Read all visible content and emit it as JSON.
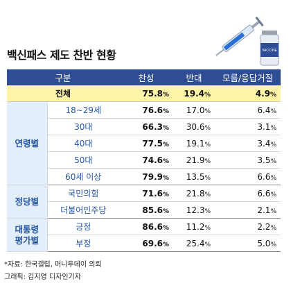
{
  "title": "백신패스 제도 찬반 현황",
  "table": {
    "headers": [
      "구분",
      "찬성",
      "반대",
      "모름/응답거절"
    ],
    "total": {
      "label": "전체",
      "values": [
        "75.8",
        "19.4",
        "4.9"
      ]
    },
    "groups": [
      {
        "name": "연령별",
        "rows": [
          {
            "label": "18~29세",
            "values": [
              "76.6",
              "17.0",
              "6.4"
            ]
          },
          {
            "label": "30대",
            "values": [
              "66.3",
              "30.6",
              "3.1"
            ]
          },
          {
            "label": "40대",
            "values": [
              "77.5",
              "19.1",
              "3.4"
            ]
          },
          {
            "label": "50대",
            "values": [
              "74.6",
              "21.9",
              "3.5"
            ]
          },
          {
            "label": "60세 이상",
            "values": [
              "79.9",
              "13.5",
              "6.6"
            ]
          }
        ]
      },
      {
        "name": "정당별",
        "rows": [
          {
            "label": "국민의힘",
            "values": [
              "71.6",
              "21.8",
              "6.6"
            ]
          },
          {
            "label": "더불어민주당",
            "values": [
              "85.6",
              "12.3",
              "2.1"
            ]
          }
        ]
      },
      {
        "name": "대통령\n평가별",
        "rows": [
          {
            "label": "긍정",
            "values": [
              "86.6",
              "11.2",
              "2.2"
            ]
          },
          {
            "label": "부정",
            "values": [
              "69.6",
              "25.4",
              "5.0"
            ]
          }
        ]
      }
    ]
  },
  "unit": "%",
  "source": "*자료: 한국갤럽, 머니투데이 의뢰",
  "credit": "그래픽: 김지영 디자인기자",
  "vial_label": "VACCINE",
  "chart_data": {
    "type": "table",
    "title": "백신패스 제도 찬반 현황",
    "columns": [
      "찬성",
      "반대",
      "모름/응답거절"
    ],
    "unit": "%",
    "rows": [
      {
        "group": "",
        "label": "전체",
        "values": [
          75.8,
          19.4,
          4.9
        ]
      },
      {
        "group": "연령별",
        "label": "18~29세",
        "values": [
          76.6,
          17.0,
          6.4
        ]
      },
      {
        "group": "연령별",
        "label": "30대",
        "values": [
          66.3,
          30.6,
          3.1
        ]
      },
      {
        "group": "연령별",
        "label": "40대",
        "values": [
          77.5,
          19.1,
          3.4
        ]
      },
      {
        "group": "연령별",
        "label": "50대",
        "values": [
          74.6,
          21.9,
          3.5
        ]
      },
      {
        "group": "연령별",
        "label": "60세 이상",
        "values": [
          79.9,
          13.5,
          6.6
        ]
      },
      {
        "group": "정당별",
        "label": "국민의힘",
        "values": [
          71.6,
          21.8,
          6.6
        ]
      },
      {
        "group": "정당별",
        "label": "더불어민주당",
        "values": [
          85.6,
          12.3,
          2.1
        ]
      },
      {
        "group": "대통령 평가별",
        "label": "긍정",
        "values": [
          86.6,
          11.2,
          2.2
        ]
      },
      {
        "group": "대통령 평가별",
        "label": "부정",
        "values": [
          69.6,
          25.4,
          5.0
        ]
      }
    ]
  }
}
